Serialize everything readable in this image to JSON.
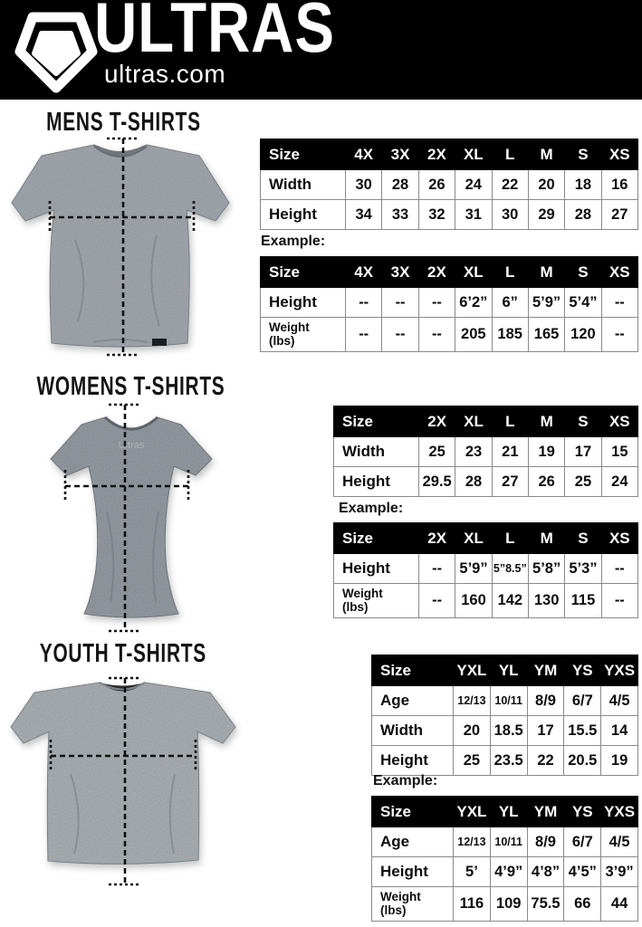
{
  "header": {
    "brand": "ULTRAS",
    "site": "ultras.com",
    "bg_color": "#000000"
  },
  "table_style": {
    "header_bg": "#000000",
    "header_text": "#ffffff",
    "border_color": "#8a8a8a"
  },
  "sections": {
    "mens": {
      "title": "MENS T-SHIRTS",
      "shirt_color": "#8b9298",
      "example_label": "Example:",
      "size_table": {
        "columns": [
          "Size",
          "4X",
          "3X",
          "2X",
          "XL",
          "L",
          "M",
          "S",
          "XS"
        ],
        "rows": [
          {
            "label": "Width",
            "values": [
              "30",
              "28",
              "26",
              "24",
              "22",
              "20",
              "18",
              "16"
            ]
          },
          {
            "label": "Height",
            "values": [
              "34",
              "33",
              "32",
              "31",
              "30",
              "29",
              "28",
              "27"
            ]
          }
        ]
      },
      "example_table": {
        "columns": [
          "Size",
          "4X",
          "3X",
          "2X",
          "XL",
          "L",
          "M",
          "S",
          "XS"
        ],
        "rows": [
          {
            "label": "Height",
            "values": [
              "--",
              "--",
              "--",
              "6’2”",
              "6”",
              "5’9”",
              "5’4”",
              "--"
            ]
          },
          {
            "label": "Weight\n(lbs)",
            "values": [
              "--",
              "--",
              "--",
              "205",
              "185",
              "165",
              "120",
              "--"
            ]
          }
        ]
      }
    },
    "womens": {
      "title": "WOMENS T-SHIRTS",
      "shirt_color": "#7c838a",
      "example_label": "Example:",
      "size_table": {
        "columns": [
          "Size",
          "2X",
          "XL",
          "L",
          "M",
          "S",
          "XS"
        ],
        "rows": [
          {
            "label": "Width",
            "values": [
              "25",
              "23",
              "21",
              "19",
              "17",
              "15"
            ]
          },
          {
            "label": "Height",
            "values": [
              "29.5",
              "28",
              "27",
              "26",
              "25",
              "24"
            ]
          }
        ]
      },
      "example_table": {
        "columns": [
          "Size",
          "2X",
          "XL",
          "L",
          "M",
          "S",
          "XS"
        ],
        "rows": [
          {
            "label": "Height",
            "values": [
              "--",
              "5’9”",
              "5”8.5”",
              "5’8”",
              "5’3”",
              "--"
            ]
          },
          {
            "label": "Weight\n(lbs)",
            "values": [
              "--",
              "160",
              "142",
              "130",
              "115",
              "--"
            ]
          }
        ]
      }
    },
    "youth": {
      "title": "YOUTH T-SHIRTS",
      "shirt_color": "#90979b",
      "example_label": "Example:",
      "size_table": {
        "columns": [
          "Size",
          "YXL",
          "YL",
          "YM",
          "YS",
          "YXS"
        ],
        "rows": [
          {
            "label": "Age",
            "values": [
              "12/13",
              "10/11",
              "8/9",
              "6/7",
              "4/5"
            ]
          },
          {
            "label": "Width",
            "values": [
              "20",
              "18.5",
              "17",
              "15.5",
              "14"
            ]
          },
          {
            "label": "Height",
            "values": [
              "25",
              "23.5",
              "22",
              "20.5",
              "19"
            ]
          }
        ]
      },
      "example_table": {
        "columns": [
          "Size",
          "YXL",
          "YL",
          "YM",
          "YS",
          "YXS"
        ],
        "rows": [
          {
            "label": "Age",
            "values": [
              "12/13",
              "10/11",
              "8/9",
              "6/7",
              "4/5"
            ]
          },
          {
            "label": "Height",
            "values": [
              "5’",
              "4’9”",
              "4’8”",
              "4’5”",
              "3’9”"
            ]
          },
          {
            "label": "Weight\n(lbs)",
            "values": [
              "116",
              "109",
              "75.5",
              "66",
              "44"
            ]
          }
        ]
      }
    }
  }
}
